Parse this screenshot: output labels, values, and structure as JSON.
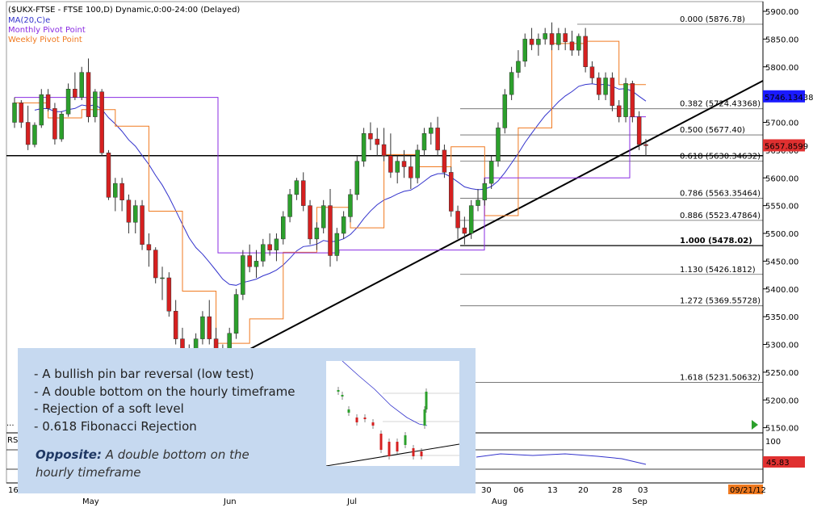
{
  "header": {
    "title": "($UKX-FTSE - FTSE 100,D) Dynamic,0:00-24:00 (Delayed)",
    "legend": [
      {
        "label": "MA(20,C)e",
        "color": "#3333cc"
      },
      {
        "label": "Monthly Pivot Point",
        "color": "#8a2be2"
      },
      {
        "label": "Weekly Pivot Point",
        "color": "#f07a20"
      }
    ]
  },
  "chart_data": {
    "type": "candlestick",
    "y_axis": {
      "ticks": [
        "5900.00",
        "5850.00",
        "5800.00",
        "5750.00",
        "5700.00",
        "5650.00",
        "5600.00",
        "5550.00",
        "5500.00",
        "5450.00",
        "5400.00",
        "5350.00",
        "5300.00",
        "5250.00",
        "5200.00",
        "5150.00"
      ],
      "range": [
        5120,
        5915
      ]
    },
    "x_axis": {
      "day_labels": [
        "16",
        "30",
        "06",
        "13",
        "20",
        "28",
        "03"
      ],
      "month_labels": [
        "May",
        "Jun",
        "Jul",
        "Aug",
        "Sep"
      ]
    },
    "price_tags": [
      {
        "value": "5746.13438",
        "color": "#1a1aff",
        "text_color": "#fff"
      },
      {
        "value": "5657.8599",
        "color": "#e03030",
        "text_color": "#fff"
      }
    ],
    "fibonacci": [
      {
        "ratio": "0.000",
        "label": "0.000 (5876.78)",
        "price": 5876.78
      },
      {
        "ratio": "0.382",
        "label": "0.382 (5724.43368)",
        "price": 5724.43
      },
      {
        "ratio": "0.500",
        "label": "0.500 (5677.40)",
        "price": 5677.4
      },
      {
        "ratio": "0.618",
        "label": "0.618 (5630.34632)",
        "price": 5630.35
      },
      {
        "ratio": "0.786",
        "label": "0.786 (5563.35464)",
        "price": 5563.35
      },
      {
        "ratio": "0.886",
        "label": "0.886 (5523.47864)",
        "price": 5523.48
      },
      {
        "ratio": "1.000",
        "label": "1.000 (5478.02)",
        "price": 5478.02
      },
      {
        "ratio": "1.130",
        "label": "1.130 (5426.1812)",
        "price": 5426.18
      },
      {
        "ratio": "1.272",
        "label": "1.272 (5369.55728)",
        "price": 5369.56
      },
      {
        "ratio": "1.618",
        "label": "1.618 (5231.50632)",
        "price": 5231.51
      }
    ],
    "horizontal_level": 5640,
    "candles": [
      [
        5700,
        5745,
        5690,
        5735
      ],
      [
        5735,
        5740,
        5690,
        5700
      ],
      [
        5700,
        5730,
        5650,
        5660
      ],
      [
        5660,
        5700,
        5655,
        5695
      ],
      [
        5695,
        5760,
        5690,
        5750
      ],
      [
        5750,
        5760,
        5720,
        5725
      ],
      [
        5725,
        5735,
        5660,
        5670
      ],
      [
        5670,
        5720,
        5665,
        5715
      ],
      [
        5715,
        5770,
        5710,
        5760
      ],
      [
        5760,
        5790,
        5740,
        5745
      ],
      [
        5745,
        5800,
        5740,
        5790
      ],
      [
        5790,
        5815,
        5700,
        5710
      ],
      [
        5710,
        5760,
        5700,
        5755
      ],
      [
        5755,
        5760,
        5640,
        5645
      ],
      [
        5645,
        5650,
        5560,
        5565
      ],
      [
        5565,
        5600,
        5540,
        5590
      ],
      [
        5590,
        5600,
        5540,
        5560
      ],
      [
        5560,
        5570,
        5500,
        5520
      ],
      [
        5520,
        5560,
        5500,
        5550
      ],
      [
        5550,
        5560,
        5470,
        5480
      ],
      [
        5480,
        5500,
        5440,
        5470
      ],
      [
        5470,
        5475,
        5410,
        5420
      ],
      [
        5420,
        5440,
        5380,
        5420
      ],
      [
        5420,
        5430,
        5350,
        5360
      ],
      [
        5360,
        5380,
        5300,
        5310
      ],
      [
        5310,
        5330,
        5260,
        5280
      ],
      [
        5280,
        5300,
        5240,
        5260
      ],
      [
        5260,
        5320,
        5250,
        5310
      ],
      [
        5310,
        5360,
        5300,
        5350
      ],
      [
        5350,
        5380,
        5300,
        5310
      ],
      [
        5310,
        5330,
        5280,
        5290
      ],
      [
        5290,
        5300,
        5250,
        5270
      ],
      [
        5270,
        5330,
        5260,
        5320
      ],
      [
        5320,
        5400,
        5310,
        5390
      ],
      [
        5390,
        5470,
        5380,
        5460
      ],
      [
        5460,
        5480,
        5430,
        5440
      ],
      [
        5440,
        5470,
        5420,
        5450
      ],
      [
        5450,
        5490,
        5440,
        5480
      ],
      [
        5480,
        5500,
        5460,
        5470
      ],
      [
        5470,
        5500,
        5450,
        5490
      ],
      [
        5490,
        5540,
        5480,
        5530
      ],
      [
        5530,
        5580,
        5520,
        5570
      ],
      [
        5570,
        5600,
        5560,
        5595
      ],
      [
        5595,
        5610,
        5540,
        5550
      ],
      [
        5550,
        5560,
        5480,
        5490
      ],
      [
        5490,
        5520,
        5470,
        5510
      ],
      [
        5510,
        5560,
        5500,
        5550
      ],
      [
        5550,
        5580,
        5440,
        5460
      ],
      [
        5460,
        5510,
        5450,
        5500
      ],
      [
        5500,
        5540,
        5490,
        5530
      ],
      [
        5530,
        5580,
        5520,
        5570
      ],
      [
        5570,
        5640,
        5560,
        5630
      ],
      [
        5630,
        5690,
        5620,
        5680
      ],
      [
        5680,
        5700,
        5650,
        5670
      ],
      [
        5670,
        5690,
        5640,
        5660
      ],
      [
        5660,
        5690,
        5630,
        5640
      ],
      [
        5640,
        5680,
        5600,
        5610
      ],
      [
        5610,
        5640,
        5590,
        5630
      ],
      [
        5630,
        5650,
        5600,
        5620
      ],
      [
        5620,
        5640,
        5580,
        5600
      ],
      [
        5600,
        5660,
        5590,
        5650
      ],
      [
        5650,
        5690,
        5640,
        5680
      ],
      [
        5680,
        5700,
        5660,
        5690
      ],
      [
        5690,
        5710,
        5640,
        5650
      ],
      [
        5650,
        5660,
        5600,
        5610
      ],
      [
        5610,
        5620,
        5530,
        5540
      ],
      [
        5540,
        5550,
        5490,
        5510
      ],
      [
        5510,
        5530,
        5480,
        5500
      ],
      [
        5500,
        5560,
        5490,
        5550
      ],
      [
        5550,
        5580,
        5540,
        5560
      ],
      [
        5560,
        5600,
        5550,
        5590
      ],
      [
        5590,
        5640,
        5580,
        5630
      ],
      [
        5630,
        5700,
        5620,
        5690
      ],
      [
        5690,
        5760,
        5680,
        5750
      ],
      [
        5750,
        5800,
        5740,
        5790
      ],
      [
        5790,
        5830,
        5780,
        5810
      ],
      [
        5810,
        5860,
        5800,
        5850
      ],
      [
        5850,
        5870,
        5830,
        5840
      ],
      [
        5840,
        5860,
        5820,
        5850
      ],
      [
        5850,
        5870,
        5840,
        5860
      ],
      [
        5860,
        5880,
        5830,
        5840
      ],
      [
        5840,
        5870,
        5830,
        5860
      ],
      [
        5860,
        5870,
        5830,
        5845
      ],
      [
        5845,
        5865,
        5820,
        5830
      ],
      [
        5830,
        5860,
        5820,
        5855
      ],
      [
        5855,
        5870,
        5790,
        5800
      ],
      [
        5800,
        5810,
        5770,
        5780
      ],
      [
        5780,
        5790,
        5740,
        5750
      ],
      [
        5750,
        5790,
        5740,
        5780
      ],
      [
        5780,
        5790,
        5720,
        5730
      ],
      [
        5730,
        5740,
        5700,
        5710
      ],
      [
        5710,
        5780,
        5700,
        5770
      ],
      [
        5770,
        5775,
        5700,
        5710
      ],
      [
        5710,
        5720,
        5650,
        5660
      ],
      [
        5660,
        5670,
        5640,
        5658
      ]
    ]
  },
  "rsi": {
    "label": "RS",
    "value_tag": "45.83",
    "level_label": "100"
  },
  "date_tag": "09/21/12",
  "note": {
    "bullets": [
      "A bullish pin bar reversal  (low test)",
      "A double bottom on the hourly timeframe",
      "Rejection of a soft level",
      "0.618 Fibonacci Rejection"
    ],
    "opposite_label": "Opposite:",
    "opposite_text": " A double bottom on the hourly timeframe"
  }
}
